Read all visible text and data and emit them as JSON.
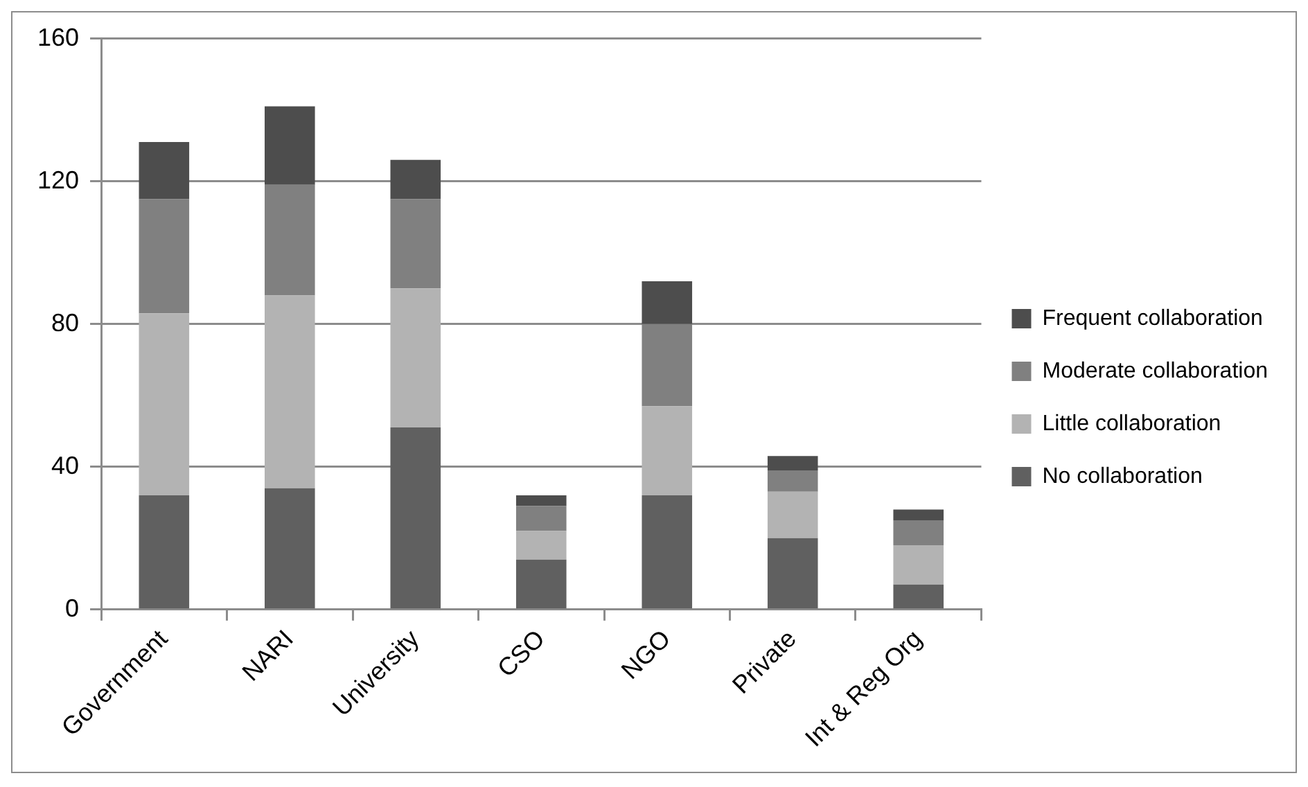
{
  "chart_data": {
    "type": "bar",
    "stacked": true,
    "categories": [
      "Government",
      "NARI",
      "University",
      "CSO",
      "NGO",
      "Private",
      "Int & Reg Org"
    ],
    "series": [
      {
        "name": "No collaboration",
        "color": "#606060",
        "values": [
          32,
          34,
          51,
          14,
          32,
          20,
          7
        ]
      },
      {
        "name": "Little collaboration",
        "color": "#b3b3b3",
        "values": [
          51,
          54,
          39,
          8,
          25,
          13,
          11
        ]
      },
      {
        "name": "Moderate collaboration",
        "color": "#808080",
        "values": [
          32,
          31,
          25,
          7,
          23,
          6,
          7
        ]
      },
      {
        "name": "Frequent collaboration",
        "color": "#4d4d4d",
        "values": [
          16,
          22,
          11,
          3,
          12,
          4,
          3
        ]
      }
    ],
    "ylim": [
      0,
      160
    ],
    "yticks": [
      0,
      40,
      80,
      120,
      160
    ],
    "grid": "y",
    "legend": "right"
  }
}
